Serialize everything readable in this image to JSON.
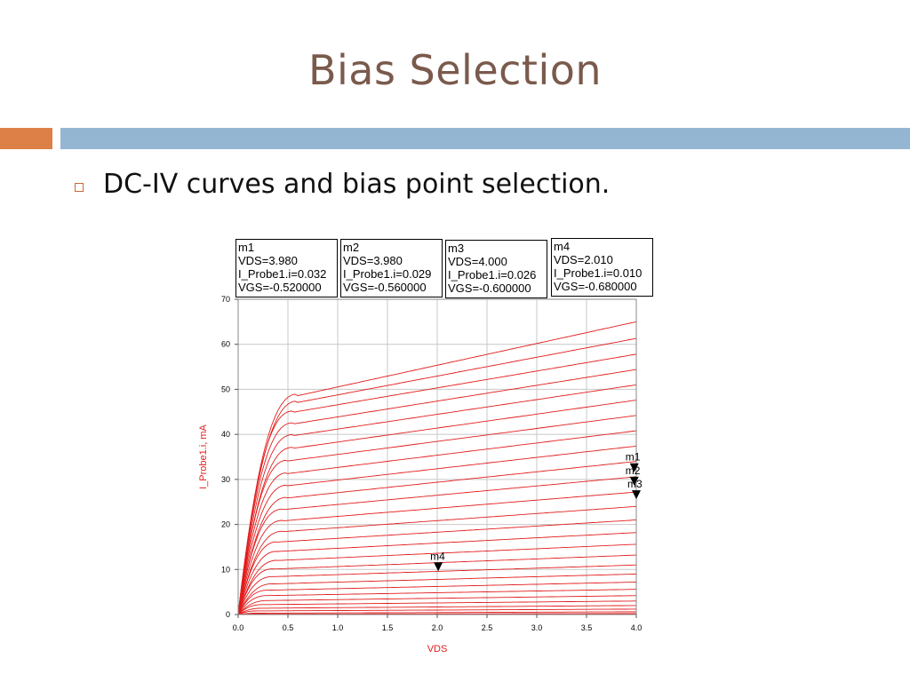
{
  "slide": {
    "title": "Bias Selection",
    "bullet": "DC-IV curves and bias point selection."
  },
  "colors": {
    "title": "#7a5a4c",
    "accent_orange": "#dd8047",
    "accent_blue": "#94b6d2",
    "curve": "#e21c1c",
    "grid": "#c8c8c8"
  },
  "chart_data": {
    "type": "line",
    "xlabel": "VDS",
    "ylabel": "I_Probe1.i, mA",
    "xlim": [
      0.0,
      4.0
    ],
    "ylim": [
      0,
      70
    ],
    "xticks": [
      "0.0",
      "0.5",
      "1.0",
      "1.5",
      "2.0",
      "2.5",
      "3.0",
      "3.5",
      "4.0"
    ],
    "yticks": [
      "0",
      "10",
      "20",
      "30",
      "40",
      "50",
      "60",
      "70"
    ],
    "grid": true,
    "curve_family": {
      "count": 27,
      "end_currents_at_vds_4": [
        0.2,
        0.6,
        1.2,
        2.0,
        3.0,
        4.2,
        5.6,
        7.2,
        9.0,
        11.0,
        13.2,
        15.6,
        18.2,
        21.0,
        24.0,
        27.2,
        30.6,
        34.0,
        37.4,
        40.8,
        44.2,
        47.6,
        51.0,
        54.4,
        57.8,
        61.3,
        65.0
      ],
      "knee_vds": [
        0.15,
        0.2,
        0.2,
        0.25,
        0.25,
        0.3,
        0.3,
        0.3,
        0.35,
        0.35,
        0.35,
        0.4,
        0.4,
        0.4,
        0.45,
        0.45,
        0.45,
        0.5,
        0.5,
        0.5,
        0.5,
        0.55,
        0.55,
        0.55,
        0.55,
        0.6,
        0.6
      ],
      "current_at_knee": [
        0.1,
        0.3,
        0.8,
        1.4,
        2.2,
        3.1,
        4.2,
        5.4,
        6.8,
        8.4,
        10.1,
        12.0,
        14.0,
        16.1,
        18.4,
        20.8,
        23.3,
        25.9,
        28.6,
        31.3,
        34.1,
        36.9,
        39.7,
        42.3,
        44.9,
        47.1,
        48.6
      ]
    },
    "markers": [
      {
        "name": "m1",
        "x": 3.98,
        "y": 32.0,
        "lines": [
          "m1",
          "VDS=3.980",
          "I_Probe1.i=0.032",
          "VGS=-0.520000"
        ]
      },
      {
        "name": "m2",
        "x": 3.98,
        "y": 29.0,
        "lines": [
          "m2",
          "VDS=3.980",
          "I_Probe1.i=0.029",
          "VGS=-0.560000"
        ]
      },
      {
        "name": "m3",
        "x": 4.0,
        "y": 26.0,
        "lines": [
          "m3",
          "VDS=4.000",
          "I_Probe1.i=0.026",
          "VGS=-0.600000"
        ]
      },
      {
        "name": "m4",
        "x": 2.01,
        "y": 10.0,
        "lines": [
          "m4",
          "VDS=2.010",
          "I_Probe1.i=0.010",
          "VGS=-0.680000"
        ]
      }
    ]
  }
}
